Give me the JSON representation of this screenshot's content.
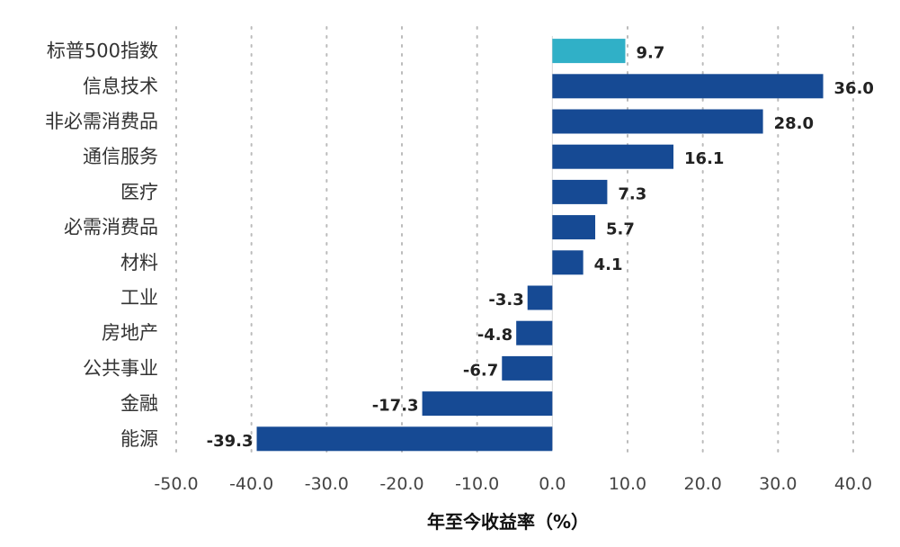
{
  "chart_data": {
    "type": "bar",
    "orientation": "horizontal",
    "categories": [
      "标普500指数",
      "信息技术",
      "非必需消费品",
      "通信服务",
      "医疗",
      "必需消费品",
      "材料",
      "工业",
      "房地产",
      "公共事业",
      "金融",
      "能源"
    ],
    "values": [
      9.7,
      36.0,
      28.0,
      16.1,
      7.3,
      5.7,
      4.1,
      -3.3,
      -4.8,
      -6.7,
      -17.3,
      -39.3
    ],
    "value_labels": [
      "9.7",
      "36.0",
      "28.0",
      "16.1",
      "7.3",
      "5.7",
      "4.1",
      "-3.3",
      "-4.8",
      "-6.7",
      "-17.3",
      "-39.3"
    ],
    "xlabel": "年至今收益率（%）",
    "xlim": [
      -50,
      40
    ],
    "xticks": [
      -50,
      -40,
      -30,
      -20,
      -10,
      0,
      10,
      20,
      30,
      40
    ],
    "xtick_labels": [
      "-50.0",
      "-40.0",
      "-30.0",
      "-20.0",
      "-10.0",
      "0.0",
      "10.0",
      "20.0",
      "30.0",
      "40.0"
    ],
    "grid": "vertical dotted",
    "colors": {
      "highlight": "#30B0C7",
      "bar": "#164A94",
      "grid": "#BBBBBB"
    },
    "highlight_index": 0
  }
}
